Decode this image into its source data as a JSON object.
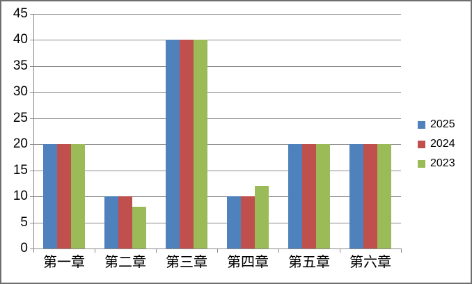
{
  "chart_data": {
    "type": "bar",
    "categories": [
      "第一章",
      "第二章",
      "第三章",
      "第四章",
      "第五章",
      "第六章"
    ],
    "series": [
      {
        "name": "2025",
        "color": "#4F81BD",
        "values": [
          20,
          10,
          40,
          10,
          20,
          20
        ]
      },
      {
        "name": "2024",
        "color": "#C0504D",
        "values": [
          20,
          10,
          40,
          10,
          20,
          20
        ]
      },
      {
        "name": "2023",
        "color": "#9BBB59",
        "values": [
          20,
          8,
          40,
          12,
          20,
          20
        ]
      }
    ],
    "title": "",
    "xlabel": "",
    "ylabel": "",
    "ylim": [
      0,
      45
    ],
    "ytick_step": 5,
    "ytick_labels": [
      "0",
      "5",
      "10",
      "15",
      "20",
      "25",
      "30",
      "35",
      "40",
      "45"
    ],
    "grid": true,
    "legend_position": "right"
  },
  "colors": {
    "background": "#FFFFFF",
    "border": "#6E6E6E",
    "gridline": "#898989",
    "axis": "#898989",
    "text": "#000000"
  }
}
